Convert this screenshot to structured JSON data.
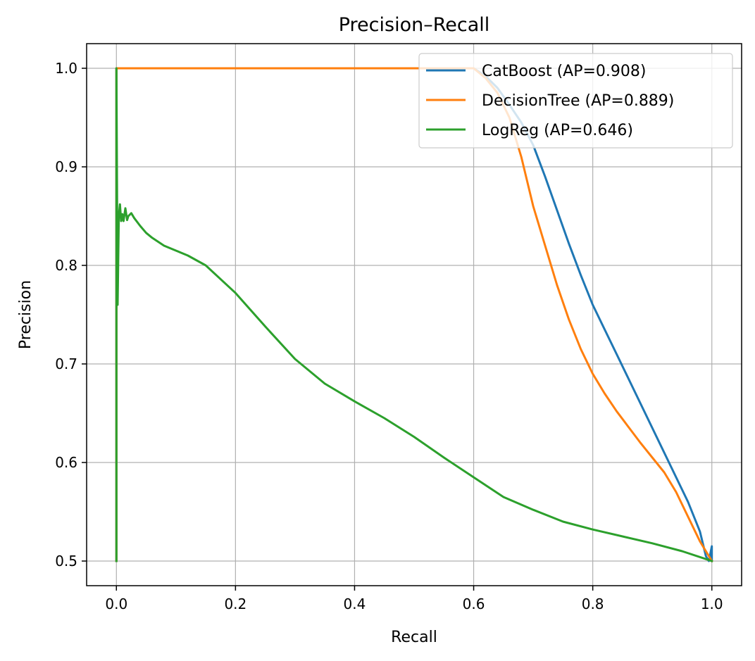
{
  "chart_data": {
    "type": "line",
    "title": "Precision–Recall",
    "xlabel": "Recall",
    "ylabel": "Precision",
    "xlim": [
      -0.05,
      1.05
    ],
    "ylim": [
      0.475,
      1.025
    ],
    "x_ticks": [
      0.0,
      0.2,
      0.4,
      0.6,
      0.8,
      1.0
    ],
    "x_tick_labels": [
      "0.0",
      "0.2",
      "0.4",
      "0.6",
      "0.8",
      "1.0"
    ],
    "y_ticks": [
      0.5,
      0.6,
      0.7,
      0.8,
      0.9,
      1.0
    ],
    "y_tick_labels": [
      "0.5",
      "0.6",
      "0.7",
      "0.8",
      "0.9",
      "1.0"
    ],
    "grid": true,
    "legend_position": "top-right",
    "series": [
      {
        "name": "CatBoost (AP=0.908)",
        "color": "#1f77b4",
        "x": [
          0.0,
          0.0,
          0.1,
          0.2,
          0.3,
          0.4,
          0.5,
          0.56,
          0.6,
          0.62,
          0.64,
          0.66,
          0.68,
          0.7,
          0.72,
          0.74,
          0.76,
          0.78,
          0.8,
          0.82,
          0.84,
          0.86,
          0.88,
          0.9,
          0.92,
          0.94,
          0.96,
          0.98,
          0.99,
          0.995,
          1.0,
          1.0
        ],
        "y": [
          0.5,
          1.0,
          1.0,
          1.0,
          1.0,
          1.0,
          1.0,
          1.0,
          1.0,
          0.992,
          0.98,
          0.963,
          0.945,
          0.922,
          0.89,
          0.856,
          0.822,
          0.79,
          0.76,
          0.735,
          0.71,
          0.685,
          0.66,
          0.635,
          0.61,
          0.585,
          0.56,
          0.53,
          0.505,
          0.5,
          0.515,
          0.5
        ]
      },
      {
        "name": "DecisionTree (AP=0.889)",
        "color": "#ff7f0e",
        "x": [
          0.0,
          0.0,
          0.1,
          0.2,
          0.3,
          0.4,
          0.5,
          0.6,
          0.62,
          0.64,
          0.66,
          0.68,
          0.7,
          0.72,
          0.74,
          0.76,
          0.78,
          0.8,
          0.82,
          0.84,
          0.86,
          0.88,
          0.9,
          0.92,
          0.94,
          0.96,
          0.98,
          1.0
        ],
        "y": [
          0.5,
          1.0,
          1.0,
          1.0,
          1.0,
          1.0,
          1.0,
          1.0,
          0.99,
          0.975,
          0.95,
          0.91,
          0.86,
          0.82,
          0.78,
          0.745,
          0.715,
          0.69,
          0.67,
          0.652,
          0.636,
          0.62,
          0.605,
          0.59,
          0.57,
          0.545,
          0.52,
          0.5
        ]
      },
      {
        "name": "LogReg (AP=0.646)",
        "color": "#2ca02c",
        "x": [
          0.0,
          0.0,
          0.002,
          0.004,
          0.006,
          0.008,
          0.01,
          0.012,
          0.015,
          0.018,
          0.02,
          0.025,
          0.03,
          0.04,
          0.05,
          0.06,
          0.08,
          0.1,
          0.12,
          0.15,
          0.2,
          0.25,
          0.3,
          0.35,
          0.4,
          0.45,
          0.5,
          0.55,
          0.6,
          0.65,
          0.7,
          0.75,
          0.8,
          0.85,
          0.9,
          0.95,
          1.0
        ],
        "y": [
          0.5,
          1.0,
          0.76,
          0.85,
          0.862,
          0.845,
          0.852,
          0.845,
          0.858,
          0.846,
          0.85,
          0.853,
          0.848,
          0.84,
          0.833,
          0.828,
          0.82,
          0.815,
          0.81,
          0.8,
          0.772,
          0.738,
          0.705,
          0.68,
          0.662,
          0.645,
          0.626,
          0.605,
          0.585,
          0.565,
          0.552,
          0.54,
          0.532,
          0.525,
          0.518,
          0.51,
          0.5
        ]
      }
    ]
  }
}
